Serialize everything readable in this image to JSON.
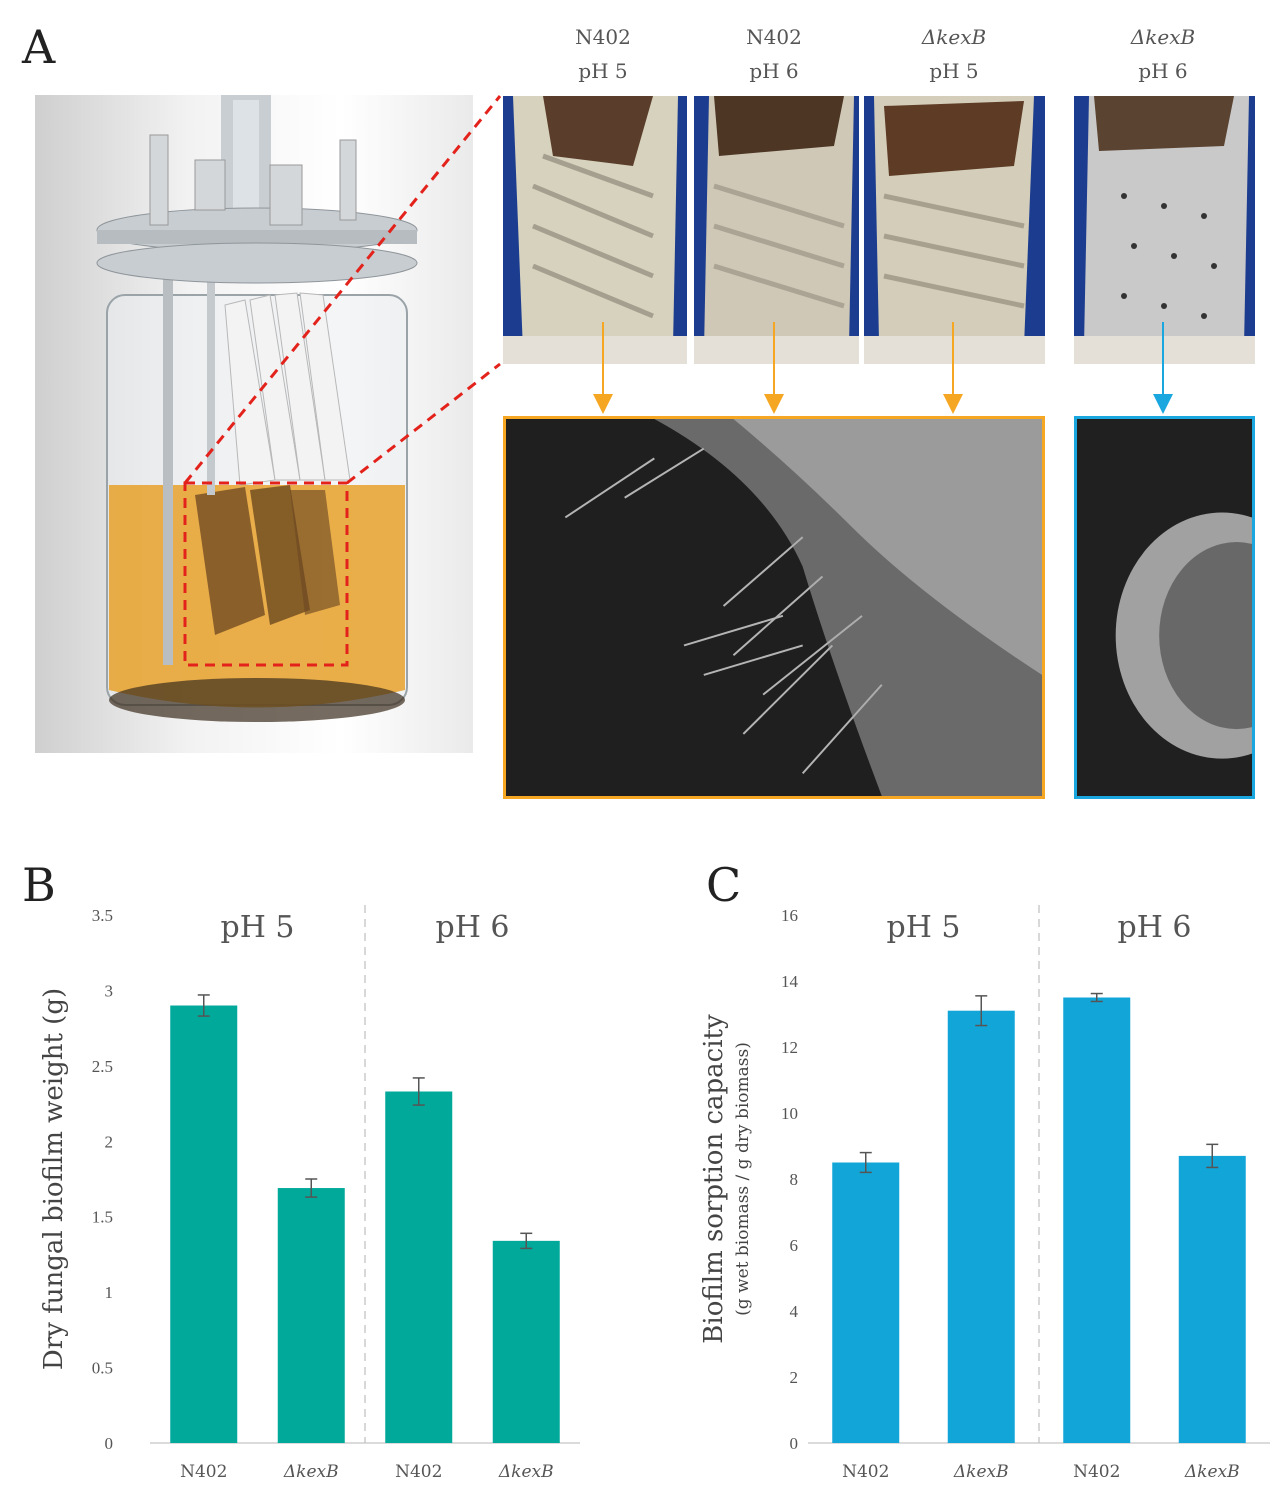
{
  "panels": {
    "a": {
      "letter": "A"
    },
    "b": {
      "letter": "B"
    },
    "c": {
      "letter": "C"
    }
  },
  "photos": [
    {
      "strain": "N402",
      "ph": "pH 5",
      "italic": false,
      "biofilm_color": "#d7d2bd",
      "arrow_color": "#f5a623"
    },
    {
      "strain": "N402",
      "ph": "pH 6",
      "italic": false,
      "biofilm_color": "#cfc8b6",
      "arrow_color": "#f5a623"
    },
    {
      "strain": "ΔkexB",
      "ph": "pH 5",
      "italic": true,
      "biofilm_color": "#d3cdb9",
      "arrow_color": "#f5a623"
    },
    {
      "strain": "ΔkexB",
      "ph": "pH 6",
      "italic": true,
      "biofilm_color": "#c9c9c9",
      "arrow_color": "#1aa7e0"
    }
  ],
  "colors": {
    "orange_frame": "#f5a623",
    "blue_frame": "#1aa7e0",
    "zoom_dash": "#e3221b",
    "bar_b": "#00a99a",
    "bar_c": "#12a5d8"
  },
  "chart_data": [
    {
      "type": "bar",
      "ylabel": "Dry fungal biofilm weight (g)",
      "ylim": [
        0,
        3.5
      ],
      "yticks": [
        "0",
        "0.5",
        "1",
        "1.5",
        "2",
        "2.5",
        "3",
        "3.5"
      ],
      "tick_values": [
        0,
        0.5,
        1,
        1.5,
        2,
        2.5,
        3,
        3.5
      ],
      "groups": [
        "pH 5",
        "pH 6"
      ],
      "categories": [
        "N402",
        "ΔkexB",
        "N402",
        "ΔkexB"
      ],
      "values": [
        2.9,
        1.69,
        2.33,
        1.34
      ],
      "errors": [
        0.07,
        0.06,
        0.09,
        0.05
      ],
      "color": "#00a99a"
    },
    {
      "type": "bar",
      "ylabel": "Biofilm sorption capacity",
      "ylabel_sub": "(g wet biomass / g dry biomass)",
      "ylim": [
        0,
        16
      ],
      "yticks": [
        "0",
        "2",
        "4",
        "6",
        "8",
        "10",
        "12",
        "14",
        "16"
      ],
      "tick_values": [
        0,
        2,
        4,
        6,
        8,
        10,
        12,
        14,
        16
      ],
      "groups": [
        "pH 5",
        "pH 6"
      ],
      "categories": [
        "N402",
        "ΔkexB",
        "N402",
        "ΔkexB"
      ],
      "values": [
        8.5,
        13.1,
        13.5,
        8.7
      ],
      "errors": [
        0.3,
        0.45,
        0.12,
        0.35
      ],
      "color": "#12a5d8"
    }
  ]
}
